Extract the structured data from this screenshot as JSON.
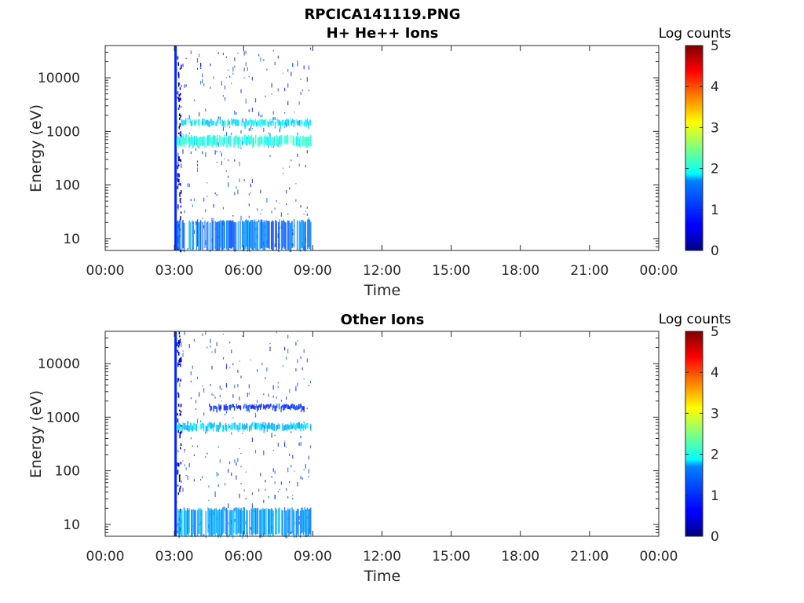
{
  "figure_title": "RPCICA141119.PNG",
  "chart_data": [
    {
      "type": "heatmap",
      "title": "H+ He++ Ions",
      "xlabel": "Time",
      "ylabel": "Energy (eV)",
      "yscale": "log",
      "xlim": [
        "00:00",
        "24:00"
      ],
      "ylim": [
        6,
        40000
      ],
      "x_tick_labels": [
        "00:00",
        "03:00",
        "06:00",
        "09:00",
        "12:00",
        "15:00",
        "18:00",
        "21:00",
        "00:00"
      ],
      "y_tick_values": [
        10,
        100,
        1000,
        10000
      ],
      "y_tick_labels": [
        "10",
        "100",
        "1000",
        "10000"
      ],
      "colorbar": {
        "label": "Log counts",
        "min": 0,
        "max": 5,
        "ticks": [
          "0",
          "1",
          "2",
          "3",
          "4",
          "5"
        ],
        "colormap": "jet"
      },
      "data_coverage": {
        "start": "03:00",
        "end": "08:55"
      },
      "features": [
        {
          "name": "spike",
          "time": "03:00",
          "energy_range": [
            6,
            40000
          ],
          "level": 1.0
        },
        {
          "name": "band",
          "time_range": [
            "03:15",
            "08:55"
          ],
          "energy_range": [
            1250,
            1700
          ],
          "level": 1.8
        },
        {
          "name": "band",
          "time_range": [
            "03:05",
            "08:55"
          ],
          "energy_range": [
            520,
            850
          ],
          "level": 2.0
        },
        {
          "name": "band",
          "time_range": [
            "03:05",
            "08:55"
          ],
          "energy_range": [
            6,
            22
          ],
          "level": 1.2
        }
      ]
    },
    {
      "type": "heatmap",
      "title": "Other Ions",
      "xlabel": "Time",
      "ylabel": "Energy (eV)",
      "yscale": "log",
      "xlim": [
        "00:00",
        "24:00"
      ],
      "ylim": [
        6,
        40000
      ],
      "x_tick_labels": [
        "00:00",
        "03:00",
        "06:00",
        "09:00",
        "12:00",
        "15:00",
        "18:00",
        "21:00",
        "00:00"
      ],
      "y_tick_values": [
        10,
        100,
        1000,
        10000
      ],
      "y_tick_labels": [
        "10",
        "100",
        "1000",
        "10000"
      ],
      "colorbar": {
        "label": "Log counts",
        "min": 0,
        "max": 5,
        "ticks": [
          "0",
          "1",
          "2",
          "3",
          "4",
          "5"
        ],
        "colormap": "jet"
      },
      "data_coverage": {
        "start": "03:00",
        "end": "08:55"
      },
      "features": [
        {
          "name": "spike",
          "time": "03:00",
          "energy_range": [
            6,
            40000
          ],
          "level": 1.0
        },
        {
          "name": "band",
          "time_range": [
            "04:30",
            "08:45"
          ],
          "energy_range": [
            1350,
            1750
          ],
          "level": 0.8
        },
        {
          "name": "band",
          "time_range": [
            "03:05",
            "08:55"
          ],
          "energy_range": [
            560,
            780
          ],
          "level": 1.6
        },
        {
          "name": "band",
          "time_range": [
            "03:05",
            "08:55"
          ],
          "energy_range": [
            6,
            20
          ],
          "level": 1.4
        }
      ]
    }
  ]
}
